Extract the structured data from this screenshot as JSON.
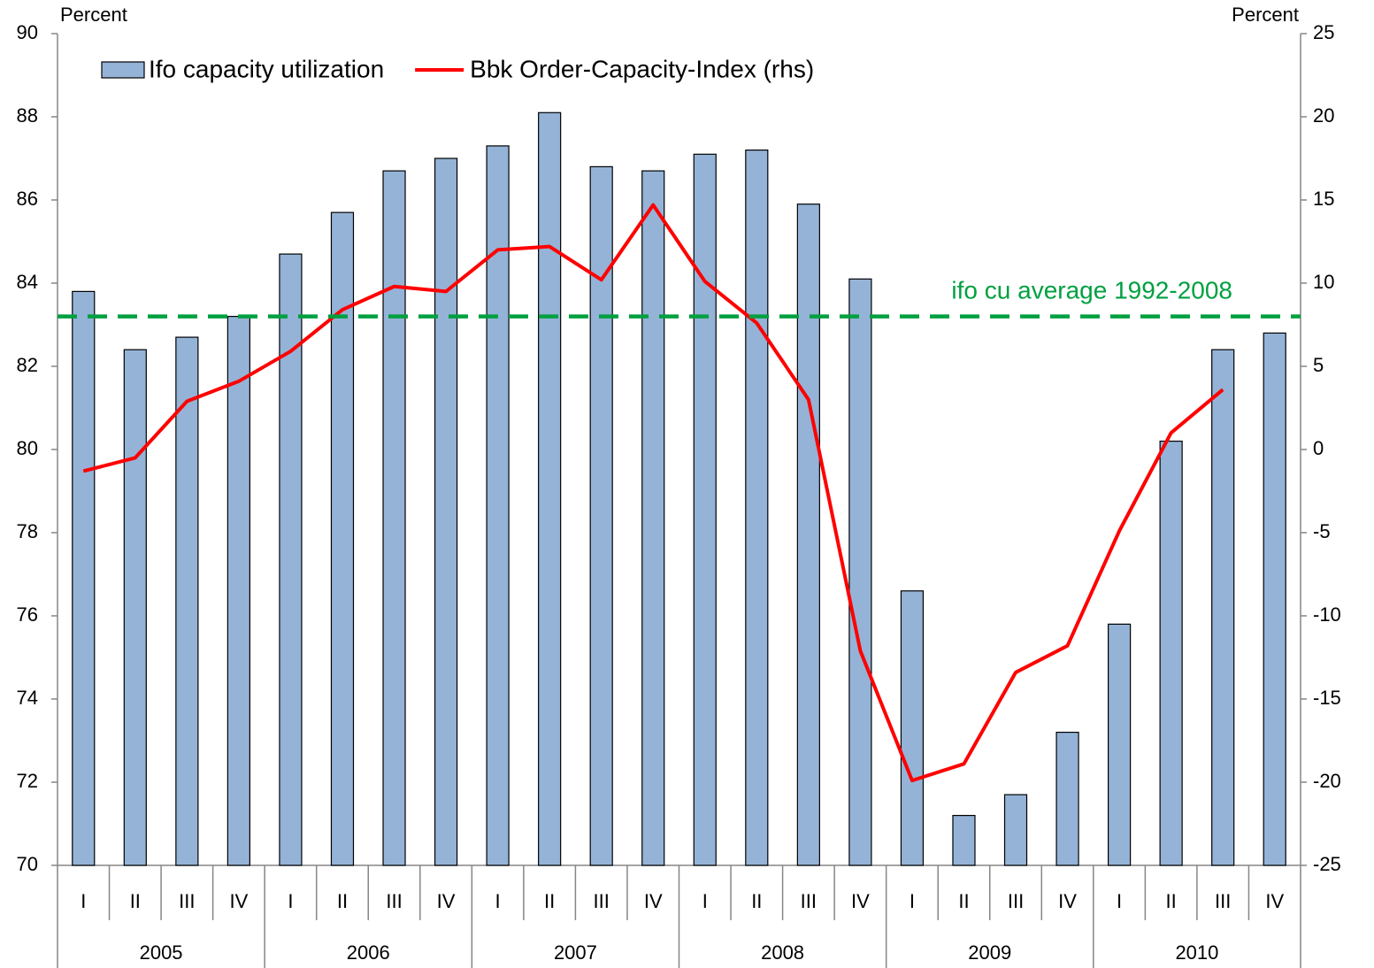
{
  "chart_data": {
    "type": "bar_line",
    "ylabel": "Percent",
    "y2label": "Percent",
    "categories": [
      "I",
      "II",
      "III",
      "IV",
      "I",
      "II",
      "III",
      "IV",
      "I",
      "II",
      "III",
      "IV",
      "I",
      "II",
      "III",
      "IV",
      "I",
      "II",
      "III",
      "IV",
      "I",
      "II",
      "III",
      "IV"
    ],
    "years": [
      "2005",
      "2006",
      "2007",
      "2008",
      "2009",
      "2010"
    ],
    "series": [
      {
        "name": "Ifo capacity utilization",
        "type": "bar",
        "color": "#95b3d7",
        "axis": "y",
        "values": [
          83.8,
          82.4,
          82.7,
          83.2,
          84.7,
          85.7,
          86.7,
          87.0,
          87.3,
          88.1,
          86.8,
          86.7,
          87.1,
          87.2,
          85.9,
          84.1,
          76.6,
          71.2,
          71.7,
          73.2,
          75.8,
          80.2,
          82.4,
          82.8
        ]
      },
      {
        "name": "Bbk Order-Capacity-Index (rhs)",
        "type": "line",
        "color": "#ff0000",
        "axis": "y2",
        "values": [
          -1.3,
          -0.5,
          2.9,
          4.1,
          5.9,
          8.4,
          9.8,
          9.5,
          12.0,
          12.2,
          10.2,
          14.7,
          10.1,
          7.6,
          3.0,
          -12.1,
          -19.9,
          -18.9,
          -13.4,
          -11.8,
          -4.9,
          1.0,
          3.6,
          null
        ]
      }
    ],
    "reference_line": {
      "value": 83.2,
      "label": "ifo cu average 1992-2008",
      "color": "#00a040"
    },
    "ylim": [
      70,
      90
    ],
    "yticks": [
      70,
      72,
      74,
      76,
      78,
      80,
      82,
      84,
      86,
      88,
      90
    ],
    "y2lim": [
      -25,
      25
    ],
    "y2ticks": [
      -25,
      -20,
      -15,
      -10,
      -5,
      0,
      5,
      10,
      15,
      20,
      25
    ],
    "legend": "top-left"
  }
}
